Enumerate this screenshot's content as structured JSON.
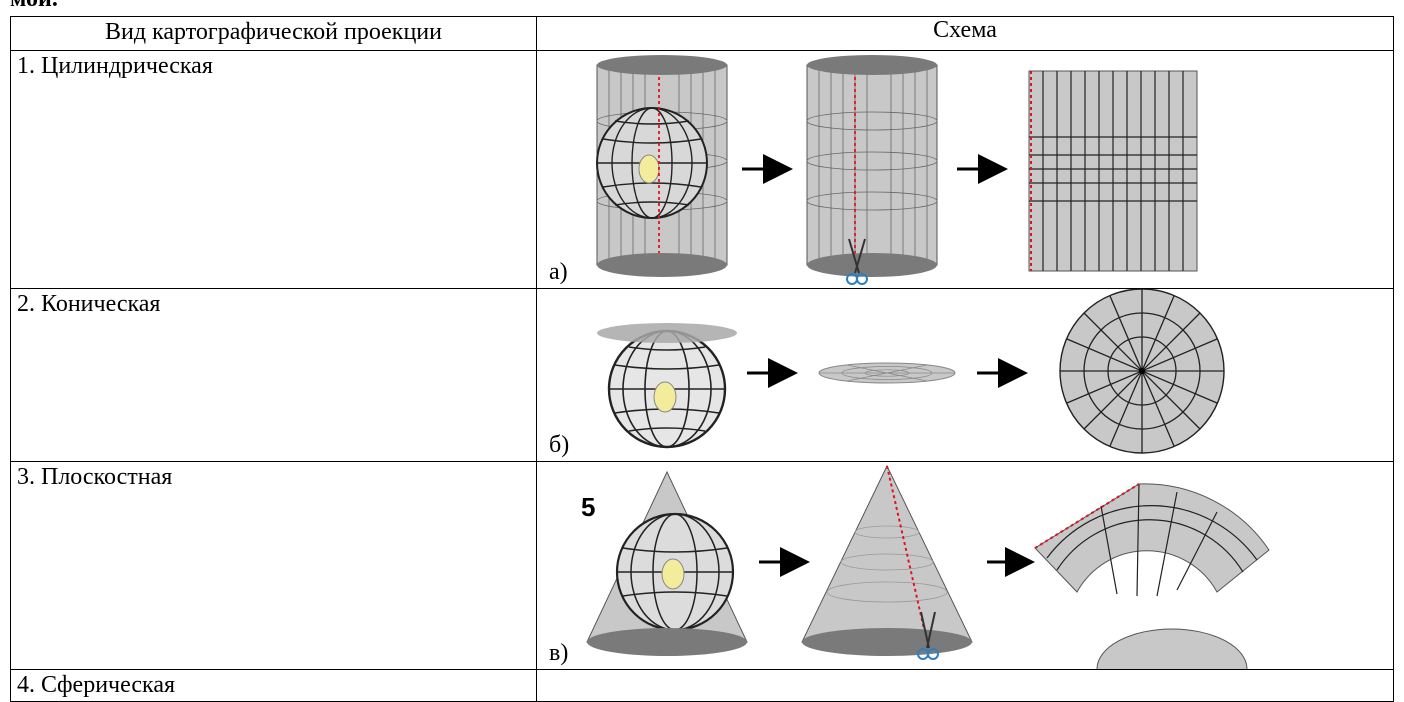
{
  "page_fragment": "мой.",
  "table": {
    "headers": [
      "Вид картографической проекции",
      "Схема"
    ],
    "rows": [
      {
        "name": "1. Цилиндрическая",
        "scheme_label": "а)"
      },
      {
        "name": "2. Коническая",
        "scheme_label": "б)"
      },
      {
        "name": "3. Плоскостная",
        "scheme_label": "в)"
      },
      {
        "name": "4. Сферическая",
        "scheme_label": ""
      }
    ]
  },
  "fragments": {
    "stray_char": "5"
  },
  "colors": {
    "surface": "#c8c8c8",
    "dark": "#7a7a7a",
    "cut_line": "#e0141e",
    "bulb": "#f2ec9c",
    "scissors": "#2a7fc4"
  }
}
